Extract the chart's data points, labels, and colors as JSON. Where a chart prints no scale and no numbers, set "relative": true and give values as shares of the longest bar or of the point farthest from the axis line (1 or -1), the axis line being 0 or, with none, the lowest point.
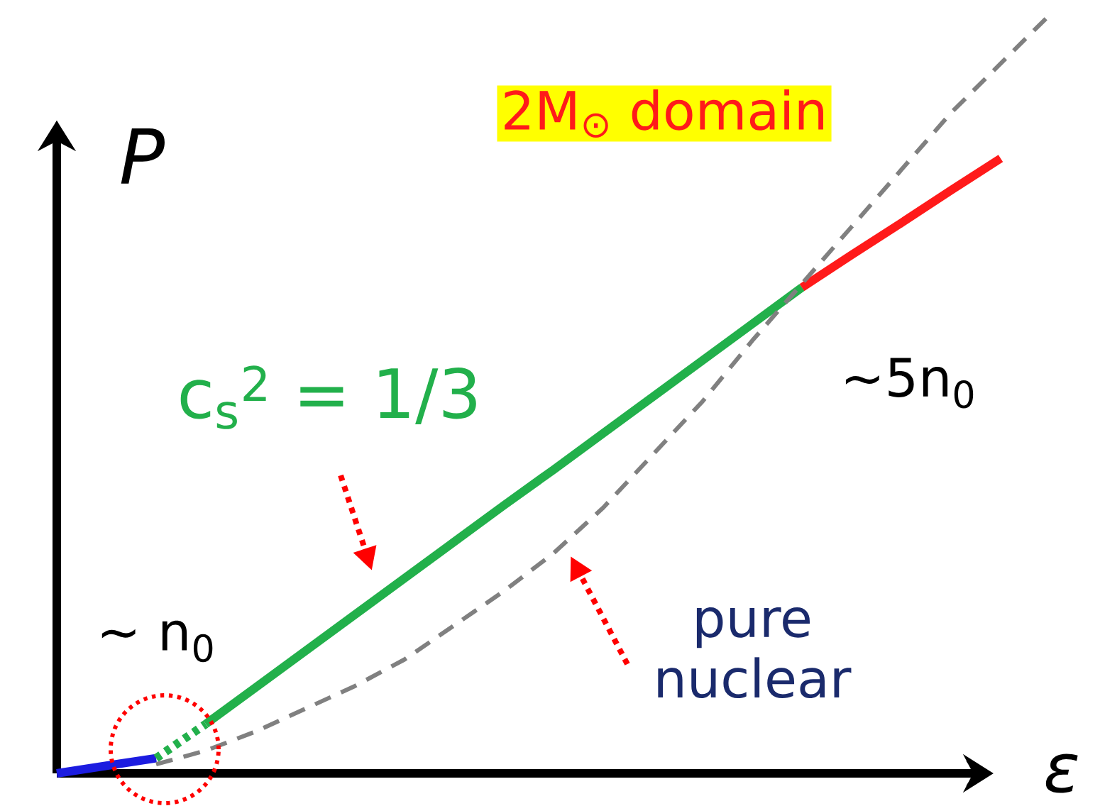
{
  "chart_data": {
    "type": "line",
    "relative": true,
    "xlabel": "ε",
    "ylabel": "P",
    "marker": "none",
    "categories": [
      null,
      null,
      null,
      null,
      null,
      null,
      null,
      null,
      null,
      null,
      null,
      null,
      null,
      null,
      null,
      null,
      null,
      null,
      null,
      null,
      null
    ],
    "series": [
      {
        "color": "#1c1ce0",
        "values": [
          0,
          0.01,
          0.02,
          null,
          null,
          null,
          null,
          null,
          null,
          null,
          null,
          null,
          null,
          null,
          null,
          null,
          null,
          null,
          null,
          null,
          null
        ]
      },
      {
        "color": "#22b04b",
        "values": [
          null,
          null,
          0.02,
          0.065,
          null,
          null,
          null,
          null,
          null,
          null,
          null,
          null,
          null,
          null,
          null,
          null,
          null,
          null,
          null,
          null,
          null
        ],
        "line_style": "dotted"
      },
      {
        "color": "#22b04b",
        "values": [
          null,
          null,
          null,
          0.065,
          0.113,
          0.161,
          0.209,
          0.257,
          0.305,
          0.353,
          0.4,
          0.448,
          0.496,
          0.544,
          0.592,
          0.64,
          null,
          null,
          null,
          null,
          null
        ]
      },
      {
        "color": "#ff1a1a",
        "values": [
          null,
          null,
          null,
          null,
          null,
          null,
          null,
          null,
          null,
          null,
          null,
          null,
          null,
          null,
          null,
          0.64,
          0.683,
          0.725,
          0.768,
          0.81,
          null
        ]
      },
      {
        "color": "#808080",
        "values": [
          null,
          null,
          0.012,
          0.03,
          0.055,
          0.085,
          0.115,
          0.15,
          0.195,
          0.24,
          0.29,
          0.35,
          0.42,
          0.49,
          0.57,
          0.645,
          0.72,
          0.795,
          0.87,
          0.935,
          1.0
        ],
        "line_style": "dashed"
      }
    ],
    "annotations": [
      "c$_{s}$$^{2}$ = 1/3",
      "pure nuclear",
      "~5n$_{0}$",
      "~ n$_{0}$",
      "2M$_{⊙}$ domain"
    ]
  }
}
